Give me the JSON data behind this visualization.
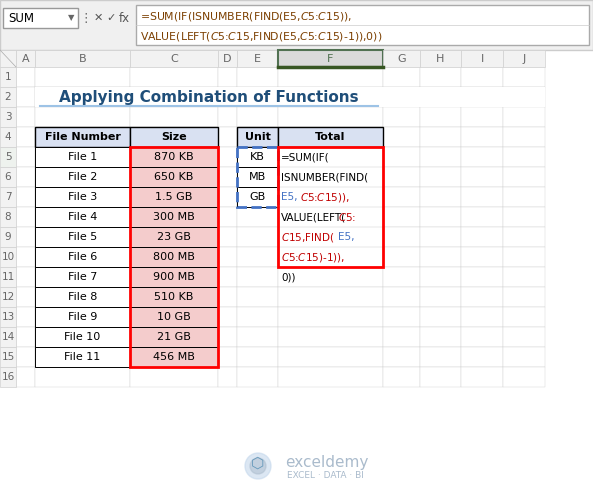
{
  "title": "Applying Combination of Functions",
  "name_box": "SUM",
  "formula_line1": "=SUM(IF(ISNUMBER(FIND(E5,$C$5:$C$15)),",
  "formula_line2": "VALUE(LEFT($C$5:$C$15,FIND(E5,$C$5:$C$15)-1)),0))",
  "col_headers": [
    "A",
    "B",
    "C",
    "D",
    "E",
    "F",
    "G",
    "H",
    "I",
    "J"
  ],
  "file_numbers": [
    "File 1",
    "File 2",
    "File 3",
    "File 4",
    "File 5",
    "File 6",
    "File 7",
    "File 8",
    "File 9",
    "File 10",
    "File 11"
  ],
  "sizes": [
    "870 KB",
    "650 KB",
    "1.5 GB",
    "300 MB",
    "23 GB",
    "800 MB",
    "900 MB",
    "510 KB",
    "10 GB",
    "21 GB",
    "456 MB"
  ],
  "units": [
    "KB",
    "MB",
    "GB"
  ],
  "header_bg": "#D9E1F2",
  "size_bg": "#F4CCCC",
  "total_bg": "#D9E1F2",
  "col_header_selected_bg": "#DADADA",
  "col_header_active_bg": "#DADADA",
  "col_header_normal_bg": "#F2F2F2",
  "row_header_bg": "#F2F2F2",
  "title_color": "#1F4E79",
  "title_underline_color": "#9DC3E6",
  "blue_color": "#4472C4",
  "red_color": "#C00000",
  "black_color": "#000000",
  "formula_border": "#FF0000",
  "blue_border": "#4472C4",
  "red_border": "#FF0000",
  "grid_color": "#D0D0D0",
  "toolbar_bg": "#F0F0F0",
  "figsize": [
    5.93,
    5.01
  ],
  "dpi": 100
}
